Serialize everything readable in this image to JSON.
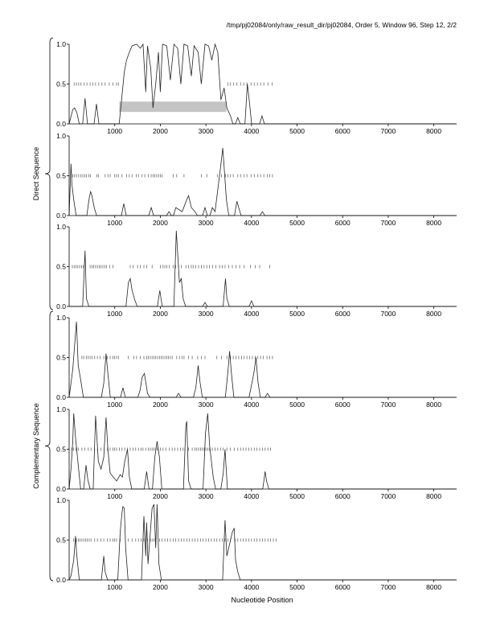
{
  "header": "/tmp/pj02084/only/raw_result_dir/pj02084, Order 5, Window 96, Step 12, 2/2",
  "xlabel": "Nucleotide Position",
  "group_labels": {
    "direct": "Direct Sequence",
    "complementary": "Complementary Sequence"
  },
  "chart_data": {
    "type": "line",
    "x_range": [
      0,
      8500
    ],
    "y_range": [
      0,
      1
    ],
    "x_ticks": [
      "1000",
      "2000",
      "3000",
      "4000",
      "5000",
      "6000",
      "7000",
      "8000"
    ],
    "y_ticks": [
      "0.0",
      "0.5",
      "1.0"
    ],
    "panels": [
      {
        "group": "direct",
        "frame": 1,
        "peaks": [
          [
            80,
            0.18
          ],
          [
            120,
            0.2
          ],
          [
            170,
            0.14
          ],
          [
            350,
            0.32
          ],
          [
            600,
            0.25
          ],
          [
            1150,
            0.3
          ],
          [
            1210,
            0.65
          ],
          [
            1260,
            0.8
          ],
          [
            1320,
            0.9
          ],
          [
            1380,
            0.98
          ],
          [
            1480,
            1.0
          ],
          [
            1560,
            0.95
          ],
          [
            1620,
            1.0
          ],
          [
            1680,
            0.4
          ],
          [
            1720,
            0.98
          ],
          [
            1790,
            0.7
          ],
          [
            1840,
            0.2
          ],
          [
            1900,
            0.5
          ],
          [
            1960,
            0.9
          ],
          [
            2000,
            0.4
          ],
          [
            2050,
            1.0
          ],
          [
            2140,
            0.98
          ],
          [
            2220,
            0.55
          ],
          [
            2300,
            1.0
          ],
          [
            2380,
            0.95
          ],
          [
            2450,
            0.5
          ],
          [
            2520,
            1.0
          ],
          [
            2600,
            0.98
          ],
          [
            2680,
            0.6
          ],
          [
            2740,
            0.98
          ],
          [
            2830,
            0.9
          ],
          [
            2900,
            0.5
          ],
          [
            2980,
            1.0
          ],
          [
            3060,
            0.98
          ],
          [
            3130,
            0.8
          ],
          [
            3200,
            1.0
          ],
          [
            3260,
            0.9
          ],
          [
            3330,
            0.3
          ],
          [
            3400,
            0.45
          ],
          [
            3460,
            0.2
          ],
          [
            3540,
            0.1
          ],
          [
            3700,
            0.08
          ],
          [
            3910,
            0.5
          ],
          [
            3950,
            0.3
          ],
          [
            4230,
            0.1
          ]
        ],
        "ticks": [
          110,
          160,
          210,
          260,
          330,
          390,
          460,
          520,
          580,
          650,
          720,
          790,
          880,
          960,
          1040,
          1080,
          3480,
          3540,
          3610,
          3680,
          3760,
          3830,
          3900,
          3990,
          4060,
          4130,
          4200,
          4270,
          4360,
          4450
        ],
        "shaded": {
          "x": [
            1100,
            3450
          ],
          "y": [
            0.15,
            0.28
          ]
        }
      },
      {
        "group": "direct",
        "frame": 2,
        "peaks": [
          [
            40,
            0.65
          ],
          [
            60,
            0.4
          ],
          [
            100,
            0.2
          ],
          [
            440,
            0.22
          ],
          [
            470,
            0.3
          ],
          [
            500,
            0.25
          ],
          [
            550,
            0.1
          ],
          [
            1200,
            0.15
          ],
          [
            1800,
            0.1
          ],
          [
            2190,
            0.05
          ],
          [
            2340,
            0.1
          ],
          [
            2480,
            0.05
          ],
          [
            2580,
            0.2
          ],
          [
            2620,
            0.25
          ],
          [
            2680,
            0.1
          ],
          [
            2760,
            0.05
          ],
          [
            2980,
            0.1
          ],
          [
            3140,
            0.1
          ],
          [
            3200,
            0.05
          ],
          [
            3320,
            0.6
          ],
          [
            3370,
            0.85
          ],
          [
            3420,
            0.45
          ],
          [
            3450,
            0.2
          ],
          [
            3680,
            0.18
          ],
          [
            3720,
            0.1
          ],
          [
            4240,
            0.05
          ]
        ],
        "ticks": [
          80,
          120,
          160,
          210,
          260,
          300,
          340,
          380,
          430,
          470,
          610,
          640,
          790,
          850,
          900,
          1000,
          1040,
          1080,
          1160,
          1260,
          1320,
          1380,
          1470,
          1520,
          1600,
          1660,
          1740,
          1800,
          1840,
          1880,
          1920,
          1960,
          2000,
          2040,
          2280,
          2360,
          2520,
          2900,
          3020,
          3250,
          3340,
          3430,
          3480,
          3540,
          3600,
          3700,
          3760,
          3840,
          3900,
          3990,
          4060,
          4140,
          4200,
          4270,
          4350,
          4400,
          4460
        ],
        "shaded": null
      },
      {
        "group": "direct",
        "frame": 3,
        "peaks": [
          [
            350,
            0.7
          ],
          [
            380,
            0.1
          ],
          [
            1300,
            0.3
          ],
          [
            1340,
            0.35
          ],
          [
            1380,
            0.2
          ],
          [
            1440,
            0.08
          ],
          [
            1990,
            0.2
          ],
          [
            2350,
            0.95
          ],
          [
            2420,
            0.3
          ],
          [
            2460,
            0.35
          ],
          [
            2500,
            0.1
          ],
          [
            2980,
            0.05
          ],
          [
            3430,
            0.35
          ],
          [
            3460,
            0.1
          ],
          [
            4000,
            0.07
          ]
        ],
        "ticks": [
          70,
          110,
          150,
          190,
          230,
          270,
          310,
          460,
          500,
          540,
          580,
          620,
          660,
          700,
          740,
          780,
          820,
          890,
          960,
          1340,
          1400,
          1500,
          1560,
          1640,
          1700,
          1820,
          2000,
          2060,
          2100,
          2140,
          2200,
          2280,
          2340,
          2400,
          2460,
          2560,
          2620,
          2680,
          2720,
          2780,
          2840,
          2900,
          2960,
          3020,
          3080,
          3150,
          3220,
          3300,
          3360,
          3420,
          3500,
          3580,
          3660,
          3740,
          3840,
          3980,
          4080,
          4180,
          4400
        ],
        "shaded": null
      },
      {
        "group": "complementary",
        "frame": 1,
        "peaks": [
          [
            80,
            0.35
          ],
          [
            120,
            0.65
          ],
          [
            160,
            0.95
          ],
          [
            200,
            0.4
          ],
          [
            260,
            0.2
          ],
          [
            760,
            0.18
          ],
          [
            810,
            0.55
          ],
          [
            850,
            0.3
          ],
          [
            1180,
            0.12
          ],
          [
            1560,
            0.1
          ],
          [
            1600,
            0.25
          ],
          [
            1650,
            0.3
          ],
          [
            1720,
            0.05
          ],
          [
            2400,
            0.05
          ],
          [
            2780,
            0.12
          ],
          [
            2830,
            0.4
          ],
          [
            2870,
            0.2
          ],
          [
            3480,
            0.3
          ],
          [
            3520,
            0.58
          ],
          [
            3560,
            0.3
          ],
          [
            4000,
            0.15
          ],
          [
            4050,
            0.3
          ],
          [
            4100,
            0.5
          ],
          [
            4140,
            0.2
          ],
          [
            4350,
            0.05
          ]
        ],
        "ticks": [
          280,
          320,
          380,
          420,
          460,
          500,
          560,
          620,
          680,
          760,
          840,
          900,
          960,
          1000,
          1040,
          1080,
          1300,
          1420,
          1480,
          1560,
          1640,
          1700,
          1740,
          1780,
          1820,
          1860,
          1900,
          1940,
          1980,
          2020,
          2060,
          2100,
          2140,
          2180,
          2220,
          2260,
          2360,
          2420,
          2480,
          2520,
          2620,
          2700,
          2820,
          2900,
          2980,
          3240,
          3340,
          3460,
          3540,
          3600,
          3660,
          3720,
          3780,
          3840,
          3900,
          3960,
          4020,
          4080,
          4140,
          4200,
          4260,
          4340,
          4400,
          4460
        ],
        "shaded": null
      },
      {
        "group": "complementary",
        "frame": 2,
        "peaks": [
          [
            40,
            0.25
          ],
          [
            80,
            0.6
          ],
          [
            100,
            0.95
          ],
          [
            140,
            0.65
          ],
          [
            200,
            0.3
          ],
          [
            370,
            0.3
          ],
          [
            410,
            0.12
          ],
          [
            580,
            0.92
          ],
          [
            640,
            0.35
          ],
          [
            700,
            0.25
          ],
          [
            760,
            0.4
          ],
          [
            810,
            0.9
          ],
          [
            850,
            0.5
          ],
          [
            900,
            0.2
          ],
          [
            1040,
            0.1
          ],
          [
            1120,
            0.18
          ],
          [
            1170,
            0.15
          ],
          [
            1220,
            0.35
          ],
          [
            1280,
            0.5
          ],
          [
            1320,
            0.15
          ],
          [
            1700,
            0.22
          ],
          [
            1880,
            0.4
          ],
          [
            1930,
            0.6
          ],
          [
            1980,
            0.4
          ],
          [
            2560,
            0.8
          ],
          [
            2580,
            0.85
          ],
          [
            2620,
            0.1
          ],
          [
            2990,
            0.7
          ],
          [
            3040,
            0.95
          ],
          [
            3080,
            0.55
          ],
          [
            3160,
            0.15
          ],
          [
            3380,
            0.2
          ],
          [
            3420,
            0.5
          ],
          [
            4300,
            0.22
          ],
          [
            4330,
            0.1
          ]
        ],
        "ticks": [
          60,
          100,
          150,
          200,
          280,
          340,
          420,
          480,
          560,
          620,
          700,
          770,
          840,
          900,
          960,
          1000,
          1040,
          1100,
          1160,
          1220,
          1280,
          1340,
          1400,
          1460,
          1520,
          1580,
          1620,
          1680,
          1740,
          1780,
          1820,
          1860,
          1900,
          1940,
          2000,
          2060,
          2120,
          2200,
          2260,
          2320,
          2380,
          2440,
          2500,
          2540,
          2620,
          2700,
          2760,
          2800,
          2840,
          2880,
          2920,
          2960,
          3000,
          3040,
          3080,
          3140,
          3200,
          3260,
          3320,
          3380,
          3460,
          3540,
          3620,
          3700,
          3760,
          3820,
          3880,
          3940,
          4000,
          4060,
          4120,
          4180,
          4240,
          4300,
          4360,
          4420
        ],
        "shaded": null
      },
      {
        "group": "complementary",
        "frame": 3,
        "peaks": [
          [
            40,
            0.05
          ],
          [
            100,
            0.25
          ],
          [
            140,
            0.55
          ],
          [
            170,
            0.3
          ],
          [
            760,
            0.3
          ],
          [
            790,
            0.1
          ],
          [
            1120,
            0.6
          ],
          [
            1160,
            0.85
          ],
          [
            1180,
            0.92
          ],
          [
            1210,
            0.9
          ],
          [
            1240,
            0.4
          ],
          [
            1640,
            0.8
          ],
          [
            1680,
            0.3
          ],
          [
            1700,
            0.72
          ],
          [
            1730,
            0.2
          ],
          [
            1820,
            0.9
          ],
          [
            1860,
            0.95
          ],
          [
            1900,
            0.4
          ],
          [
            1930,
            0.95
          ],
          [
            1970,
            0.2
          ],
          [
            3420,
            0.75
          ],
          [
            3460,
            0.3
          ],
          [
            3580,
            0.6
          ],
          [
            3620,
            0.65
          ],
          [
            3650,
            0.25
          ],
          [
            3700,
            0.1
          ]
        ],
        "ticks": [
          100,
          160,
          200,
          240,
          280,
          320,
          360,
          400,
          440,
          480,
          560,
          620,
          700,
          760,
          840,
          900,
          960,
          1000,
          1040,
          1120,
          1300,
          1380,
          1460,
          1520,
          1580,
          1640,
          1720,
          1780,
          1820,
          1860,
          1900,
          1980,
          2040,
          2100,
          2160,
          2220,
          2280,
          2340,
          2400,
          2460,
          2520,
          2580,
          2640,
          2700,
          2760,
          2820,
          2880,
          2940,
          3000,
          3060,
          3120,
          3180,
          3240,
          3300,
          3360,
          3420,
          3480,
          3540,
          3640,
          3700,
          3760,
          3820,
          3880,
          3940,
          4000,
          4060,
          4120,
          4180,
          4240,
          4300,
          4360,
          4420,
          4480,
          4540
        ],
        "shaded": null
      }
    ]
  }
}
